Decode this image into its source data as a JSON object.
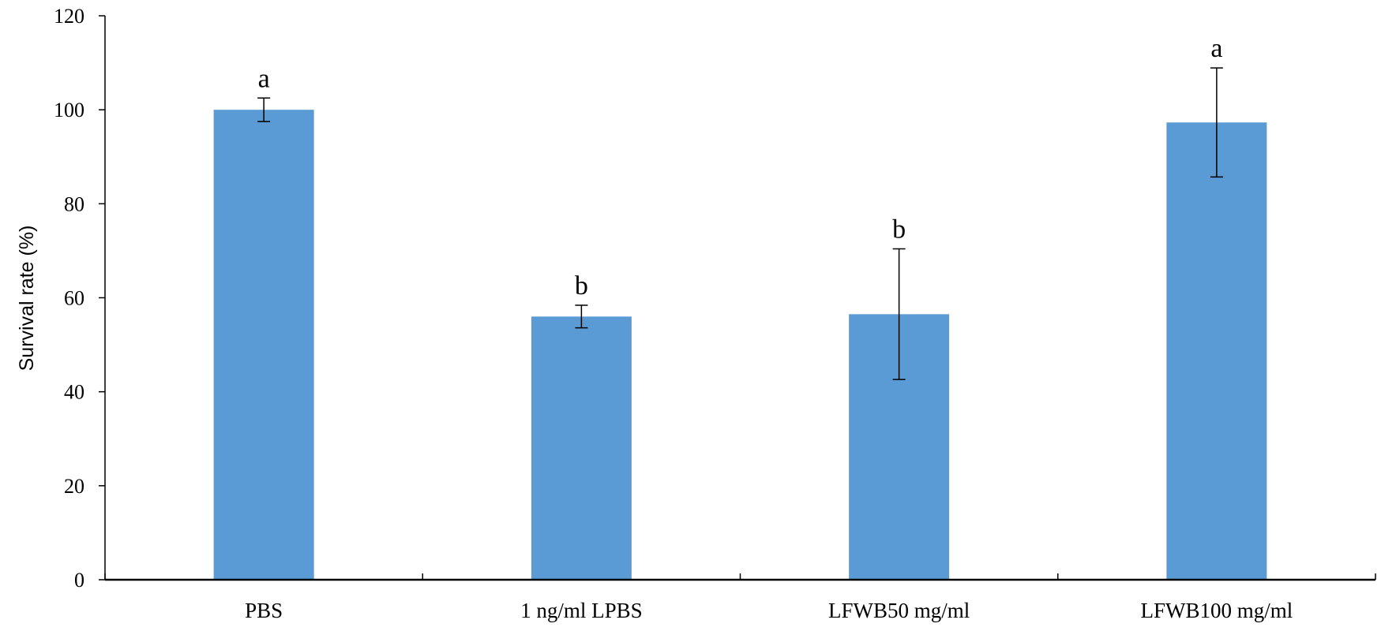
{
  "chart_data": {
    "type": "bar",
    "categories": [
      "PBS",
      "1 ng/ml LPBS",
      "LFWB50 mg/ml",
      "LFWB100 mg/ml"
    ],
    "values": [
      100,
      56,
      56.5,
      97.3
    ],
    "errors": [
      2.5,
      2.4,
      13.9,
      11.6
    ],
    "significance": [
      "a",
      "b",
      "b",
      "a"
    ],
    "ylabel": "Survival rate (%)",
    "xlabel": "",
    "ylim": [
      0,
      120
    ],
    "yticks": [
      0,
      20,
      40,
      60,
      80,
      100,
      120
    ],
    "grid": false,
    "bar_color": "#5B9BD5"
  }
}
